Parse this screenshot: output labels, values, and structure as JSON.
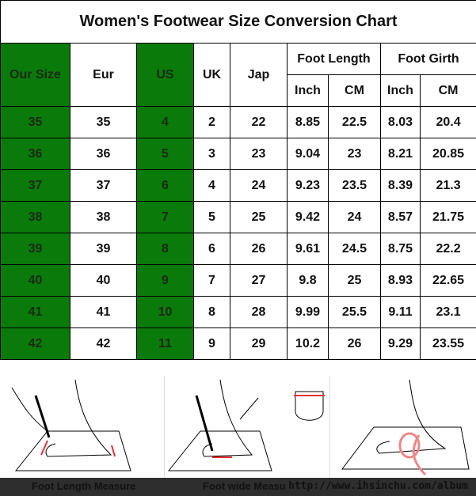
{
  "title": "Women's Footwear Size Conversion Chart",
  "headers": {
    "our_size": "Our Size",
    "eur": "Eur",
    "us": "US",
    "uk": "UK",
    "jap": "Jap",
    "foot_length": "Foot Length",
    "foot_girth": "Foot Girth",
    "inch": "Inch",
    "cm": "CM"
  },
  "rows": [
    [
      "35",
      "35",
      "4",
      "2",
      "22",
      "8.85",
      "22.5",
      "8.03",
      "20.4"
    ],
    [
      "36",
      "36",
      "5",
      "3",
      "23",
      "9.04",
      "23",
      "8.21",
      "20.85"
    ],
    [
      "37",
      "37",
      "6",
      "4",
      "24",
      "9.23",
      "23.5",
      "8.39",
      "21.3"
    ],
    [
      "38",
      "38",
      "7",
      "5",
      "25",
      "9.42",
      "24",
      "8.57",
      "21.75"
    ],
    [
      "39",
      "39",
      "8",
      "6",
      "26",
      "9.61",
      "24.5",
      "8.75",
      "22.2"
    ],
    [
      "40",
      "40",
      "9",
      "7",
      "27",
      "9.8",
      "25",
      "8.93",
      "22.65"
    ],
    [
      "41",
      "41",
      "10",
      "8",
      "28",
      "9.99",
      "25.5",
      "9.11",
      "23.1"
    ],
    [
      "42",
      "42",
      "11",
      "9",
      "29",
      "10.2",
      "26",
      "9.29",
      "23.55"
    ]
  ],
  "captions": [
    "Foot Length Measure",
    "Foot wide Measu"
  ],
  "watermark": "http://www.ihsinchu.com/album",
  "colors": {
    "highlight": "#0a7a0a",
    "measure_line": "#e03030"
  }
}
